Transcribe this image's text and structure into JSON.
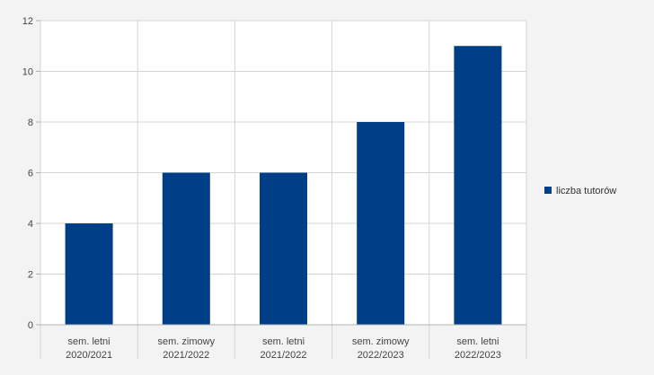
{
  "chart_data": {
    "type": "bar",
    "categories": [
      [
        "sem. letni",
        "2020/2021"
      ],
      [
        "sem. zimowy",
        "2021/2022"
      ],
      [
        "sem. letni",
        "2021/2022"
      ],
      [
        "sem. zimowy",
        "2022/2023"
      ],
      [
        "sem. letni",
        "2022/2023"
      ]
    ],
    "series": [
      {
        "name": "liczba tutorów",
        "values": [
          4,
          6,
          6,
          8,
          11
        ],
        "color": "#003f87"
      }
    ],
    "ylim": [
      0,
      12
    ],
    "yticks": [
      0,
      2,
      4,
      6,
      8,
      10,
      12
    ],
    "grid": true,
    "legend": "right",
    "title": "",
    "xlabel": "",
    "ylabel": ""
  }
}
